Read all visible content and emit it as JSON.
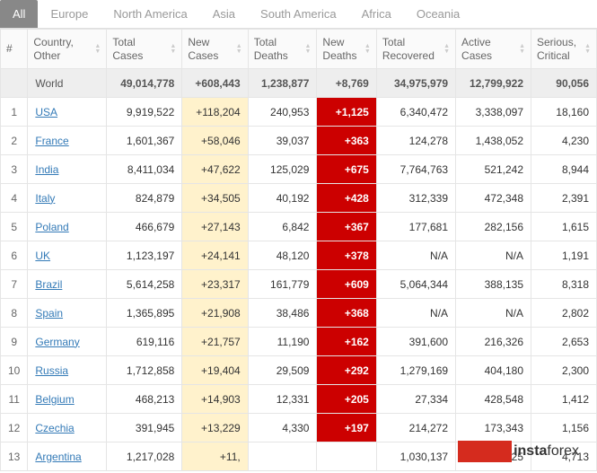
{
  "tabs": [
    "All",
    "Europe",
    "North America",
    "Asia",
    "South America",
    "Africa",
    "Oceania"
  ],
  "activeTab": 0,
  "columns": [
    "#",
    "Country,\nOther",
    "Total\nCases",
    "New\nCases",
    "Total\nDeaths",
    "New\nDeaths",
    "Total\nRecovered",
    "Active\nCases",
    "Serious,\nCritical"
  ],
  "worldRow": {
    "country": "World",
    "totalCases": "49,014,778",
    "newCases": "+608,443",
    "totalDeaths": "1,238,877",
    "newDeaths": "+8,769",
    "totalRecovered": "34,975,979",
    "activeCases": "12,799,922",
    "serious": "90,056"
  },
  "rows": [
    {
      "n": "1",
      "country": "USA",
      "totalCases": "9,919,522",
      "newCases": "+118,204",
      "totalDeaths": "240,953",
      "newDeaths": "+1,125",
      "totalRecovered": "6,340,472",
      "activeCases": "3,338,097",
      "serious": "18,160"
    },
    {
      "n": "2",
      "country": "France",
      "totalCases": "1,601,367",
      "newCases": "+58,046",
      "totalDeaths": "39,037",
      "newDeaths": "+363",
      "totalRecovered": "124,278",
      "activeCases": "1,438,052",
      "serious": "4,230"
    },
    {
      "n": "3",
      "country": "India",
      "totalCases": "8,411,034",
      "newCases": "+47,622",
      "totalDeaths": "125,029",
      "newDeaths": "+675",
      "totalRecovered": "7,764,763",
      "activeCases": "521,242",
      "serious": "8,944"
    },
    {
      "n": "4",
      "country": "Italy",
      "totalCases": "824,879",
      "newCases": "+34,505",
      "totalDeaths": "40,192",
      "newDeaths": "+428",
      "totalRecovered": "312,339",
      "activeCases": "472,348",
      "serious": "2,391"
    },
    {
      "n": "5",
      "country": "Poland",
      "totalCases": "466,679",
      "newCases": "+27,143",
      "totalDeaths": "6,842",
      "newDeaths": "+367",
      "totalRecovered": "177,681",
      "activeCases": "282,156",
      "serious": "1,615"
    },
    {
      "n": "6",
      "country": "UK",
      "totalCases": "1,123,197",
      "newCases": "+24,141",
      "totalDeaths": "48,120",
      "newDeaths": "+378",
      "totalRecovered": "N/A",
      "activeCases": "N/A",
      "serious": "1,191"
    },
    {
      "n": "7",
      "country": "Brazil",
      "totalCases": "5,614,258",
      "newCases": "+23,317",
      "totalDeaths": "161,779",
      "newDeaths": "+609",
      "totalRecovered": "5,064,344",
      "activeCases": "388,135",
      "serious": "8,318"
    },
    {
      "n": "8",
      "country": "Spain",
      "totalCases": "1,365,895",
      "newCases": "+21,908",
      "totalDeaths": "38,486",
      "newDeaths": "+368",
      "totalRecovered": "N/A",
      "activeCases": "N/A",
      "serious": "2,802"
    },
    {
      "n": "9",
      "country": "Germany",
      "totalCases": "619,116",
      "newCases": "+21,757",
      "totalDeaths": "11,190",
      "newDeaths": "+162",
      "totalRecovered": "391,600",
      "activeCases": "216,326",
      "serious": "2,653"
    },
    {
      "n": "10",
      "country": "Russia",
      "totalCases": "1,712,858",
      "newCases": "+19,404",
      "totalDeaths": "29,509",
      "newDeaths": "+292",
      "totalRecovered": "1,279,169",
      "activeCases": "404,180",
      "serious": "2,300"
    },
    {
      "n": "11",
      "country": "Belgium",
      "totalCases": "468,213",
      "newCases": "+14,903",
      "totalDeaths": "12,331",
      "newDeaths": "+205",
      "totalRecovered": "27,334",
      "activeCases": "428,548",
      "serious": "1,412"
    },
    {
      "n": "12",
      "country": "Czechia",
      "totalCases": "391,945",
      "newCases": "+13,229",
      "totalDeaths": "4,330",
      "newDeaths": "+197",
      "totalRecovered": "214,272",
      "activeCases": "173,343",
      "serious": "1,156"
    },
    {
      "n": "13",
      "country": "Argentina",
      "totalCases": "1,217,028",
      "newCases": "+11,",
      "totalDeaths": "",
      "newDeaths": "",
      "totalRecovered": "1,030,137",
      "activeCases": "154,125",
      "serious": "4,713"
    }
  ],
  "watermark": {
    "bold": "insta",
    "light": "forex"
  },
  "colors": {
    "newCasesBg": "#fff2cc",
    "newDeathsBg": "#cc0000",
    "link": "#337ab7",
    "activeTabBg": "#888888"
  }
}
